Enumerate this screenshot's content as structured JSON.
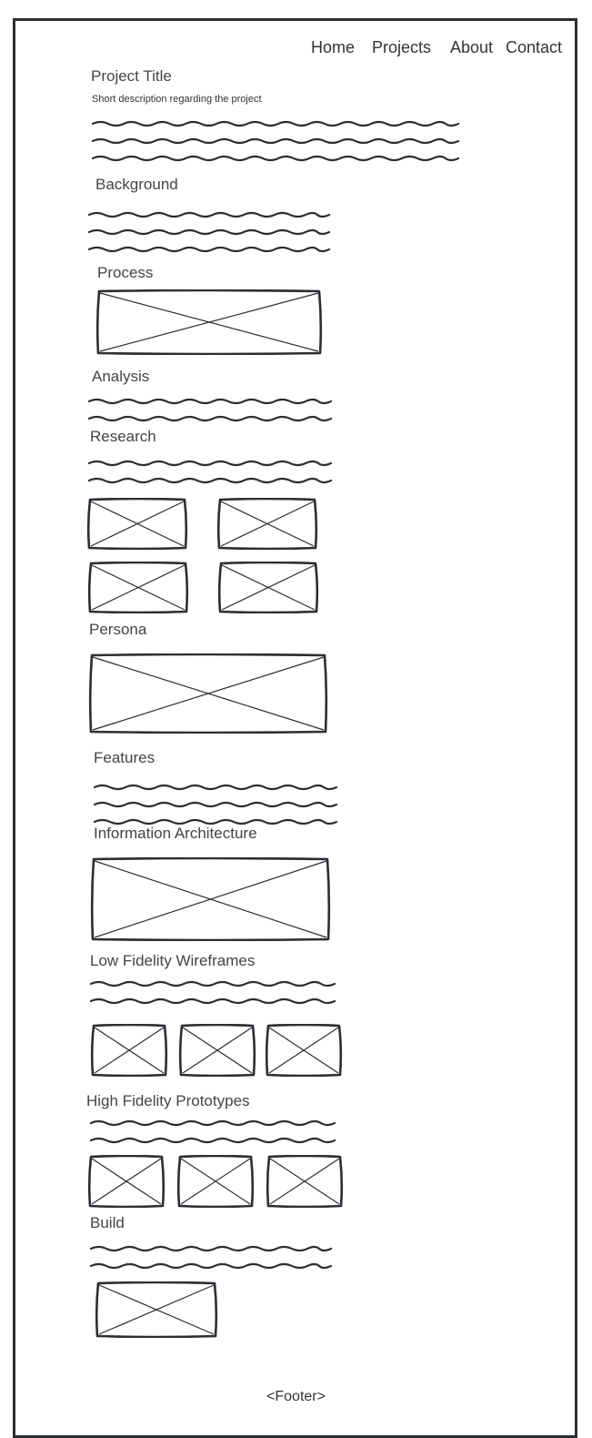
{
  "nav": {
    "home": "Home",
    "projects": "Projects",
    "about": "About",
    "contact": "Contact"
  },
  "project": {
    "title": "Project Title",
    "description": "Short description regarding the project"
  },
  "sections": {
    "background": "Background",
    "process": "Process",
    "analysis": "Analysis",
    "research": "Research",
    "persona": "Persona",
    "features": "Features",
    "information_architecture": "Information Architecture",
    "low_fidelity_wireframes": "Low Fidelity Wireframes",
    "high_fidelity_prototypes": "High Fidelity Prototypes",
    "build": "Build"
  },
  "footer": "<Footer>"
}
